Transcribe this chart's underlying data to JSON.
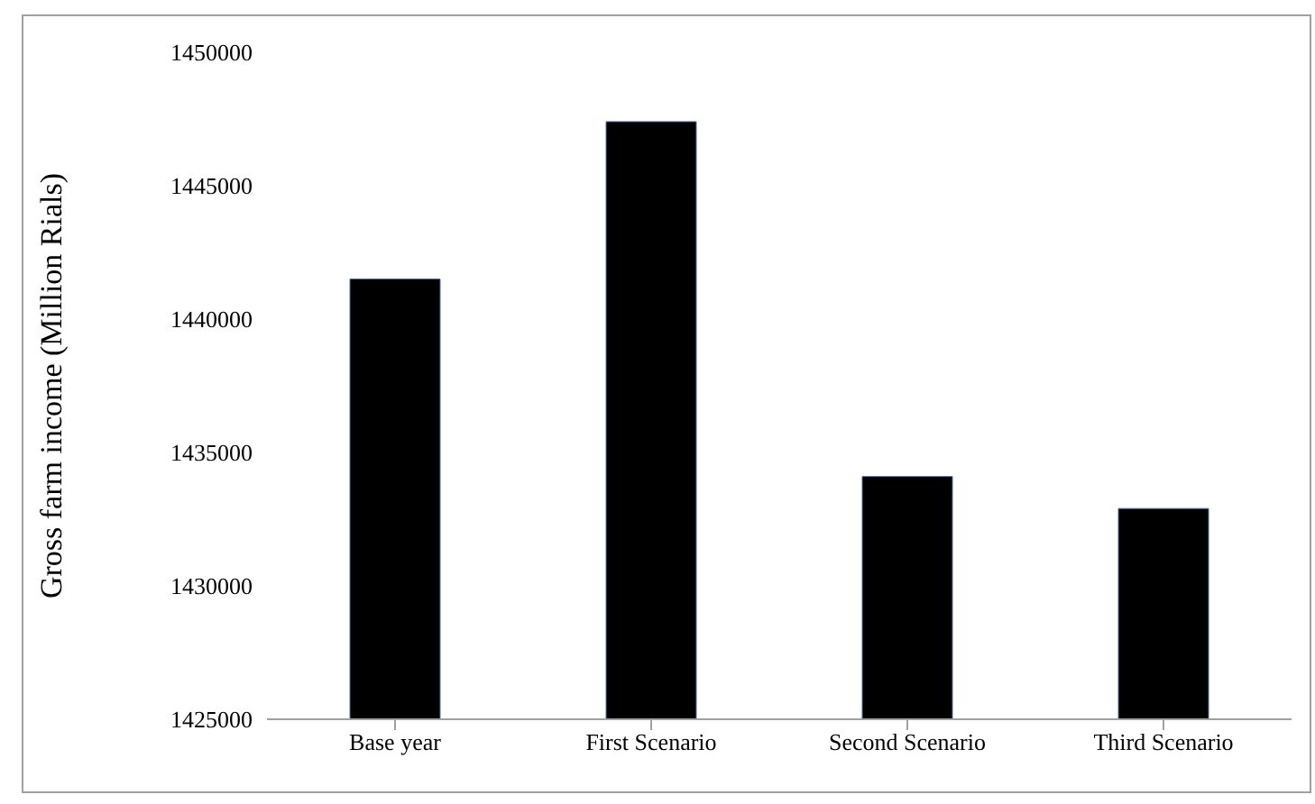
{
  "chart_data": {
    "type": "bar",
    "ylabel": "Gross farm income (Million Rials)",
    "categories": [
      "Base year",
      "First Scenario",
      "Second Scenario",
      "Third Scenario"
    ],
    "values": [
      1441500,
      1447400,
      1434100,
      1432900
    ],
    "color": "#000000",
    "ylim": [
      1425000,
      1450000
    ],
    "yticks": [
      1425000,
      1430000,
      1435000,
      1440000,
      1445000,
      1450000
    ],
    "grid": false
  }
}
